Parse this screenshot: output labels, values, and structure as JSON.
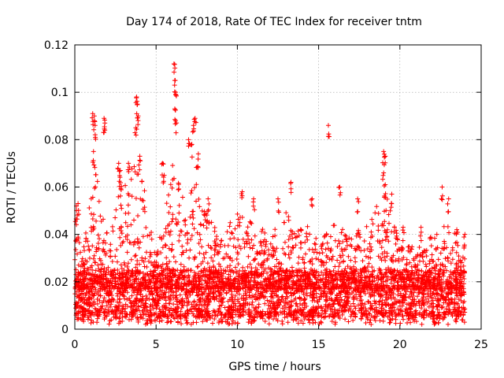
{
  "chart_data": {
    "type": "scatter",
    "title": "Day 174 of 2018, Rate Of TEC Index for receiver tntm",
    "xlabel": "GPS time / hours",
    "ylabel": "ROTI / TECUs",
    "xlim": [
      0,
      25
    ],
    "ylim": [
      0,
      0.12
    ],
    "x_ticks": [
      0,
      5,
      10,
      15,
      20,
      25
    ],
    "x_tick_labels": [
      "0",
      "5",
      "10",
      "15",
      "20",
      "25"
    ],
    "y_ticks": [
      0,
      0.02,
      0.04,
      0.06,
      0.08,
      0.1,
      0.12
    ],
    "y_tick_labels": [
      "0",
      "0.02",
      "0.04",
      "0.06",
      "0.08",
      "0.1",
      "0.12"
    ],
    "grid": true,
    "marker": "+",
    "series": [
      {
        "name": "ROTI",
        "color": "#ff0000",
        "x_range": [
          0,
          24
        ],
        "typical_range": [
          0.005,
          0.025
        ],
        "upper_envelope": [
          [
            0.0,
            0.048
          ],
          [
            0.5,
            0.032
          ],
          [
            1.0,
            0.06
          ],
          [
            1.3,
            0.075
          ],
          [
            1.8,
            0.045
          ],
          [
            2.2,
            0.04
          ],
          [
            2.7,
            0.07
          ],
          [
            3.2,
            0.06
          ],
          [
            3.6,
            0.075
          ],
          [
            4.0,
            0.07
          ],
          [
            4.5,
            0.05
          ],
          [
            5.0,
            0.03
          ],
          [
            5.5,
            0.05
          ],
          [
            6.0,
            0.07
          ],
          [
            6.5,
            0.06
          ],
          [
            7.0,
            0.05
          ],
          [
            7.5,
            0.075
          ],
          [
            8.0,
            0.05
          ],
          [
            9.0,
            0.04
          ],
          [
            10.0,
            0.05
          ],
          [
            11.0,
            0.045
          ],
          [
            12.0,
            0.04
          ],
          [
            13.0,
            0.05
          ],
          [
            14.0,
            0.045
          ],
          [
            15.0,
            0.04
          ],
          [
            16.0,
            0.045
          ],
          [
            17.0,
            0.04
          ],
          [
            18.0,
            0.045
          ],
          [
            19.0,
            0.06
          ],
          [
            19.5,
            0.05
          ],
          [
            20.0,
            0.035
          ],
          [
            21.0,
            0.035
          ],
          [
            22.0,
            0.04
          ],
          [
            23.0,
            0.045
          ],
          [
            24.0,
            0.035
          ]
        ],
        "notable_points": [
          {
            "x": 6.1,
            "y": 0.112
          },
          {
            "x": 6.15,
            "y": 0.105
          },
          {
            "x": 6.2,
            "y": 0.1
          },
          {
            "x": 6.15,
            "y": 0.093
          },
          {
            "x": 6.2,
            "y": 0.088
          },
          {
            "x": 3.8,
            "y": 0.098
          },
          {
            "x": 3.85,
            "y": 0.095
          },
          {
            "x": 3.9,
            "y": 0.09
          },
          {
            "x": 3.75,
            "y": 0.085
          },
          {
            "x": 1.1,
            "y": 0.091
          },
          {
            "x": 1.2,
            "y": 0.09
          },
          {
            "x": 1.25,
            "y": 0.086
          },
          {
            "x": 1.8,
            "y": 0.089
          },
          {
            "x": 1.85,
            "y": 0.087
          },
          {
            "x": 7.4,
            "y": 0.089
          },
          {
            "x": 7.3,
            "y": 0.086
          },
          {
            "x": 15.6,
            "y": 0.086
          },
          {
            "x": 1.15,
            "y": 0.075
          },
          {
            "x": 7.0,
            "y": 0.08
          },
          {
            "x": 7.2,
            "y": 0.078
          },
          {
            "x": 7.6,
            "y": 0.074
          },
          {
            "x": 5.4,
            "y": 0.07
          },
          {
            "x": 5.5,
            "y": 0.065
          },
          {
            "x": 19.0,
            "y": 0.075
          },
          {
            "x": 19.1,
            "y": 0.073
          },
          {
            "x": 19.0,
            "y": 0.066
          },
          {
            "x": 19.1,
            "y": 0.061
          },
          {
            "x": 19.5,
            "y": 0.057
          },
          {
            "x": 16.3,
            "y": 0.06
          },
          {
            "x": 13.3,
            "y": 0.062
          },
          {
            "x": 10.3,
            "y": 0.058
          },
          {
            "x": 22.6,
            "y": 0.06
          },
          {
            "x": 0.1,
            "y": 0.052
          },
          {
            "x": 0.2,
            "y": 0.053
          },
          {
            "x": 2.7,
            "y": 0.07
          },
          {
            "x": 2.8,
            "y": 0.067
          },
          {
            "x": 3.3,
            "y": 0.07
          },
          {
            "x": 4.0,
            "y": 0.073
          },
          {
            "x": 8.2,
            "y": 0.055
          },
          {
            "x": 11.0,
            "y": 0.055
          },
          {
            "x": 12.5,
            "y": 0.055
          },
          {
            "x": 14.6,
            "y": 0.055
          },
          {
            "x": 17.4,
            "y": 0.055
          },
          {
            "x": 20.2,
            "y": 0.043
          },
          {
            "x": 21.3,
            "y": 0.043
          },
          {
            "x": 23.0,
            "y": 0.055
          },
          {
            "x": 23.5,
            "y": 0.042
          },
          {
            "x": 24.0,
            "y": 0.04
          }
        ]
      }
    ]
  }
}
